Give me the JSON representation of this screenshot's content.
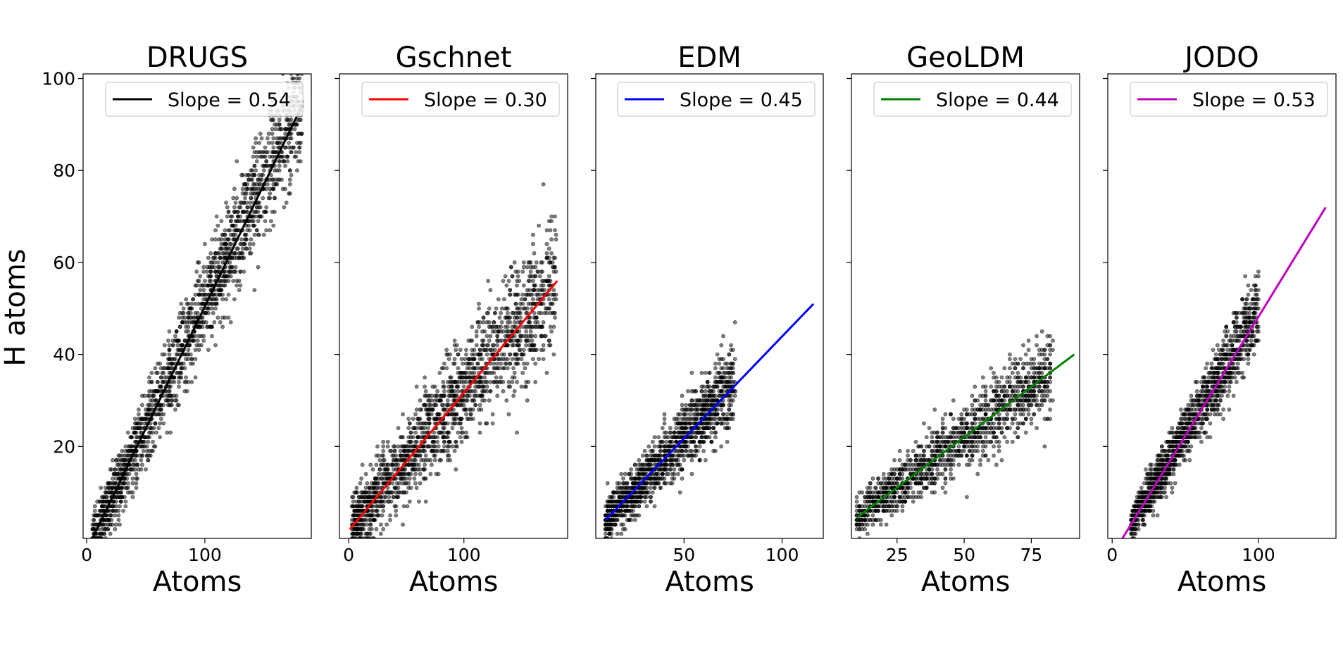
{
  "chart_data": [
    {
      "type": "scatter",
      "title": "DRUGS",
      "xlabel": "Atoms",
      "ylabel": "H atoms",
      "xlim": [
        -3,
        190
      ],
      "ylim": [
        0,
        101
      ],
      "xticks": [
        0,
        100
      ],
      "xtick_labels": [
        "0",
        "100"
      ],
      "yticks": [
        20,
        40,
        60,
        80,
        100
      ],
      "ytick_labels": [
        "20",
        "40",
        "60",
        "80",
        "100"
      ],
      "grid": false,
      "legend_position": "top-right",
      "series": [
        {
          "name": "Slope = 0.54",
          "kind": "fit-line",
          "color": "#000000",
          "x": [
            5,
            182
          ],
          "y": [
            0,
            94
          ]
        },
        {
          "kind": "points",
          "color": "#000000",
          "x_range": [
            5,
            182
          ],
          "slope": 0.54,
          "intercept": -3,
          "spread": 5,
          "count": 1700
        }
      ]
    },
    {
      "type": "scatter",
      "title": "Gschnet",
      "xlabel": "Atoms",
      "xlim": [
        -8,
        190
      ],
      "ylim": [
        0,
        101
      ],
      "xticks": [
        0,
        100
      ],
      "xtick_labels": [
        "0",
        "100"
      ],
      "yticks": [
        20,
        40,
        60,
        80,
        100
      ],
      "grid": false,
      "legend_position": "top-right",
      "series": [
        {
          "name": "Slope = 0.30",
          "kind": "fit-line",
          "color": "#ff0000",
          "x": [
            1,
            181
          ],
          "y": [
            2,
            56
          ]
        },
        {
          "kind": "points",
          "color": "#000000",
          "x_range": [
            3,
            180
          ],
          "slope": 0.3,
          "intercept": 2,
          "spread": 5.5,
          "count": 1700
        }
      ]
    },
    {
      "type": "scatter",
      "title": "EDM",
      "xlabel": "Atoms",
      "xlim": [
        5,
        121
      ],
      "ylim": [
        0,
        101
      ],
      "xticks": [
        50,
        100
      ],
      "xtick_labels": [
        "50",
        "100"
      ],
      "yticks": [
        20,
        40,
        60,
        80,
        100
      ],
      "grid": false,
      "legend_position": "top-right",
      "series": [
        {
          "name": "Slope = 0.45",
          "kind": "fit-line",
          "color": "#0000ff",
          "x": [
            10,
            116
          ],
          "y": [
            4,
            51
          ]
        },
        {
          "kind": "points",
          "color": "#000000",
          "x_range": [
            10,
            76
          ],
          "slope": 0.45,
          "intercept": -0.5,
          "spread": 3.5,
          "count": 1400
        }
      ]
    },
    {
      "type": "scatter",
      "title": "GeoLDM",
      "xlabel": "Atoms",
      "xlim": [
        8,
        93
      ],
      "ylim": [
        0,
        101
      ],
      "xticks": [
        25,
        50,
        75
      ],
      "xtick_labels": [
        "25",
        "50",
        "75"
      ],
      "yticks": [
        20,
        40,
        60,
        80,
        100
      ],
      "grid": false,
      "legend_position": "top-right",
      "series": [
        {
          "name": "Slope = 0.44",
          "kind": "fit-line",
          "color": "#008000",
          "x": [
            10,
            91
          ],
          "y": [
            4.5,
            40
          ]
        },
        {
          "kind": "points",
          "color": "#000000",
          "x_range": [
            10,
            83
          ],
          "slope": 0.44,
          "intercept": 0.2,
          "spread": 3.5,
          "count": 1400
        }
      ]
    },
    {
      "type": "scatter",
      "title": "JODO",
      "xlabel": "Atoms",
      "xlim": [
        -3,
        153
      ],
      "ylim": [
        0,
        101
      ],
      "xticks": [
        0,
        100
      ],
      "xtick_labels": [
        "0",
        "100"
      ],
      "yticks": [
        20,
        40,
        60,
        80,
        100
      ],
      "grid": false,
      "legend_position": "top-right",
      "series": [
        {
          "name": "Slope = 0.53",
          "kind": "fit-line",
          "color": "#c000c0",
          "x": [
            7,
            146
          ],
          "y": [
            0,
            72
          ]
        },
        {
          "kind": "points",
          "color": "#000000",
          "x_range": [
            13,
            100
          ],
          "slope": 0.53,
          "intercept": -3.5,
          "spread": 3.2,
          "count": 1400
        }
      ]
    }
  ]
}
